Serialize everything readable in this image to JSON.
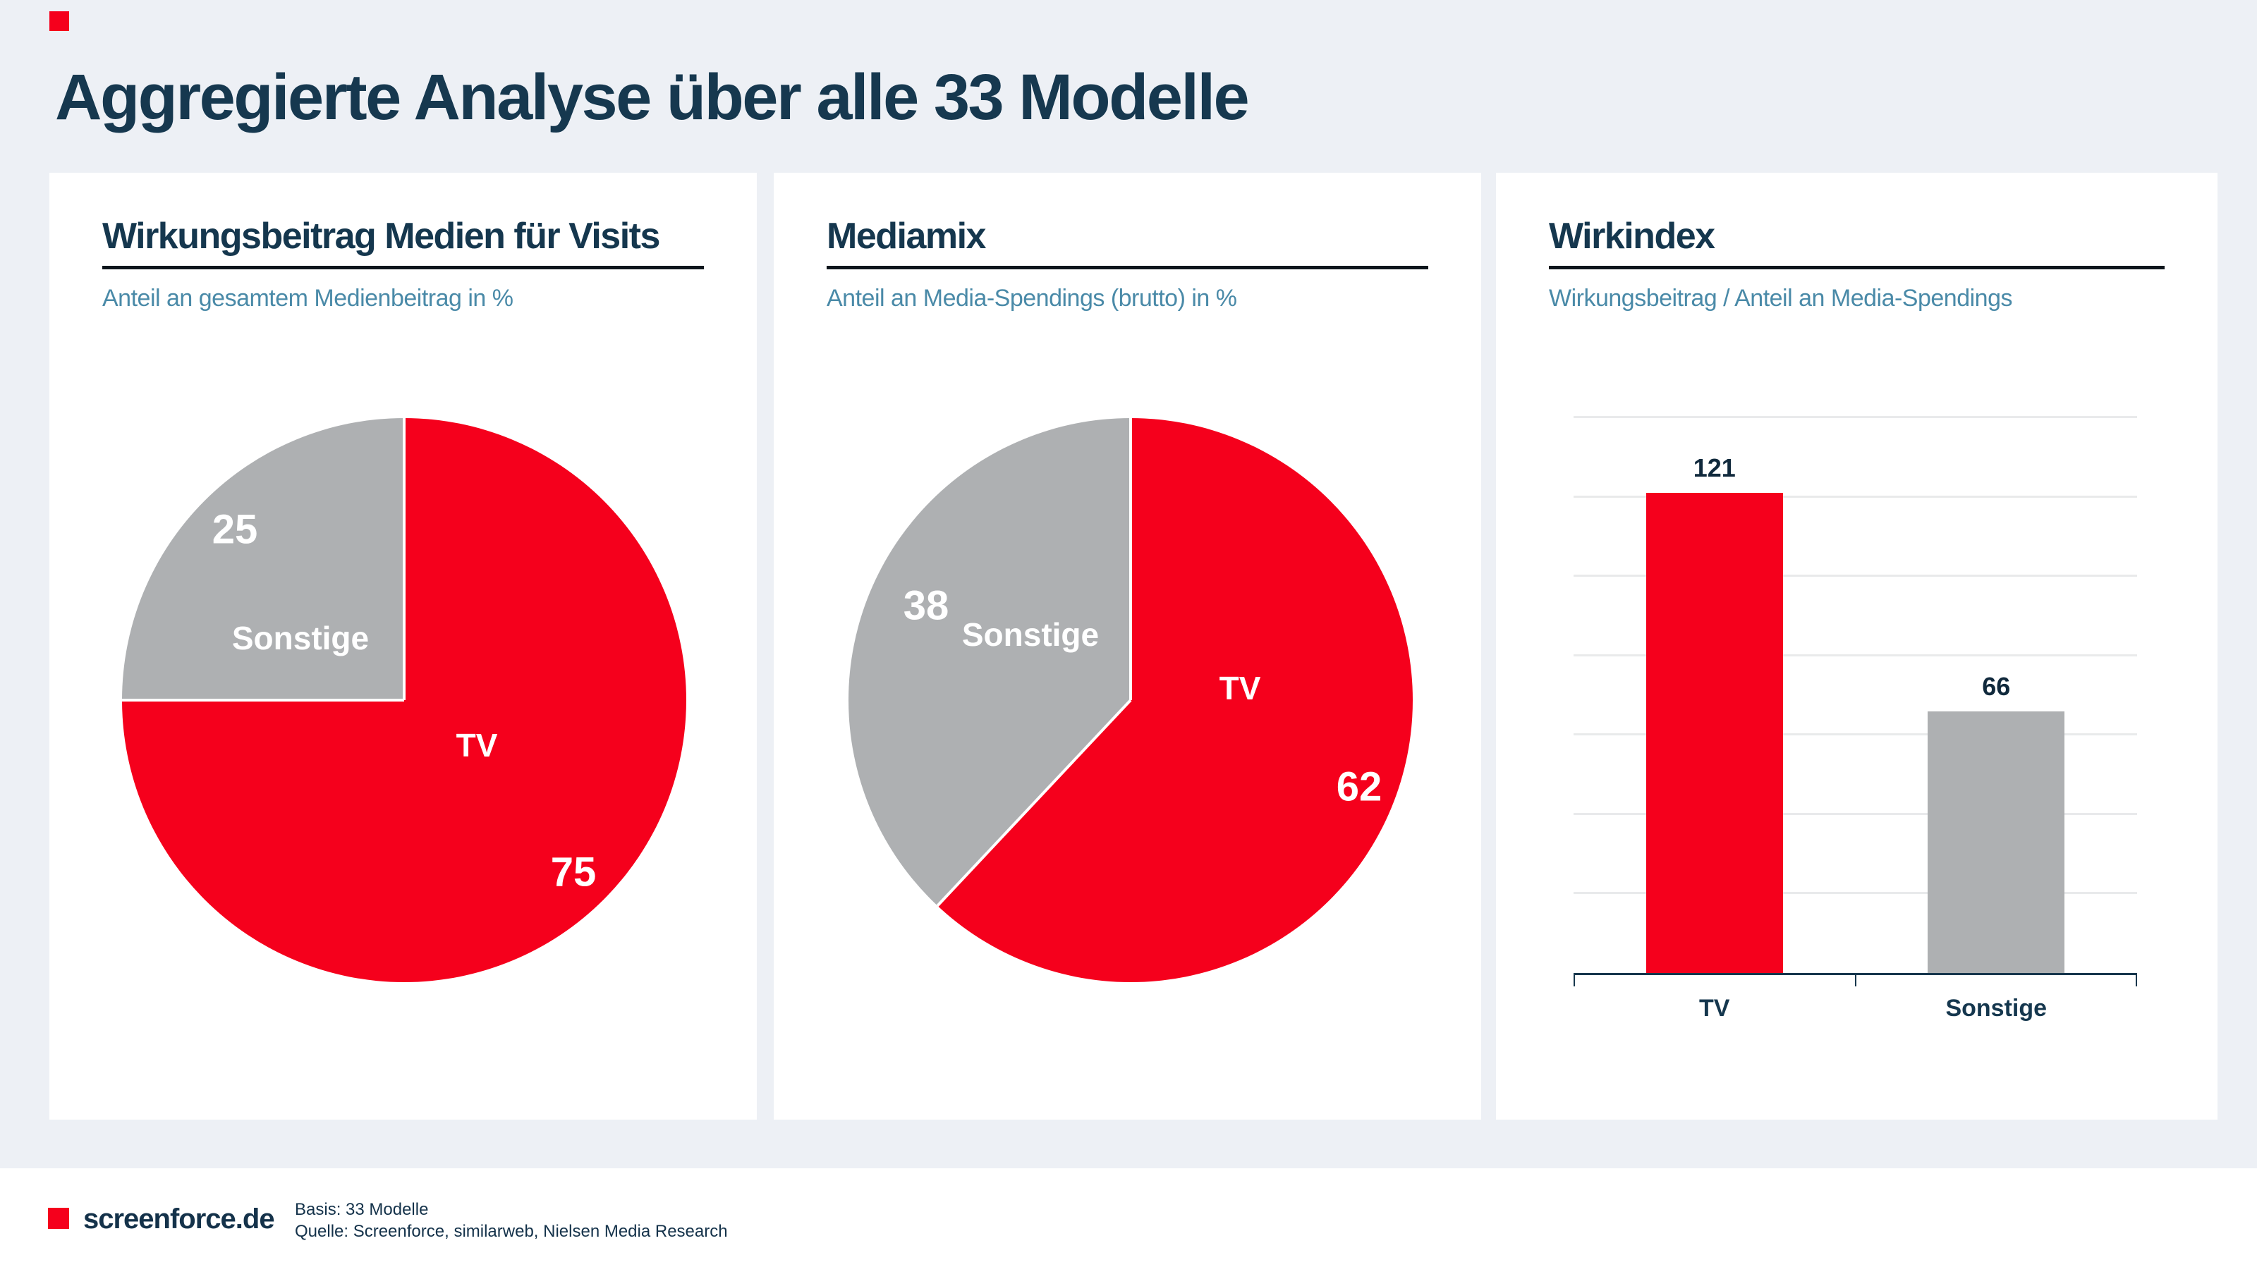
{
  "title": "Aggregierte Analyse über alle 33 Modelle",
  "colors": {
    "accent_red": "#f5001c",
    "slice_gray": "#aeb0b2",
    "heading_navy": "#15374e",
    "subtitle_blue": "#4a8aa8",
    "background": "#edf0f5",
    "panel_white": "#ffffff"
  },
  "panels": [
    {
      "heading": "Wirkungsbeitrag Medien für Visits",
      "subtitle": "Anteil an gesamtem Medienbeitrag in %"
    },
    {
      "heading": "Mediamix",
      "subtitle": "Anteil an Media-Spendings (brutto) in %"
    },
    {
      "heading": "Wirkindex",
      "subtitle": "Wirkungsbeitrag / Anteil an Media-Spendings"
    }
  ],
  "chart_data": [
    {
      "type": "pie",
      "title": "Wirkungsbeitrag Medien für Visits",
      "labels": [
        "TV",
        "Sonstige"
      ],
      "values": [
        75,
        25
      ],
      "slice_colors": [
        "#f5001c",
        "#aeb0b2"
      ],
      "start_angle_deg": 0,
      "direction": "clockwise",
      "label_style": "white-bold-inside"
    },
    {
      "type": "pie",
      "title": "Mediamix",
      "labels": [
        "TV",
        "Sonstige"
      ],
      "values": [
        62,
        38
      ],
      "slice_colors": [
        "#f5001c",
        "#aeb0b2"
      ],
      "start_angle_deg": 0,
      "direction": "clockwise",
      "label_style": "white-bold-inside"
    },
    {
      "type": "bar",
      "title": "Wirkindex",
      "categories": [
        "TV",
        "Sonstige"
      ],
      "values": [
        121,
        66
      ],
      "bar_colors": [
        "#f5001c",
        "#aeb0b2"
      ],
      "ylim": [
        0,
        140
      ],
      "grid_step": 20,
      "grid": "horizontal-light-gray",
      "y_axis_labels": "none",
      "value_labels_above_bars": [
        121,
        66
      ]
    }
  ],
  "footer": {
    "brand": "screenforce.de",
    "basis": "Basis: 33 Modelle",
    "quelle": "Quelle: Screenforce, similarweb, Nielsen Media Research"
  }
}
